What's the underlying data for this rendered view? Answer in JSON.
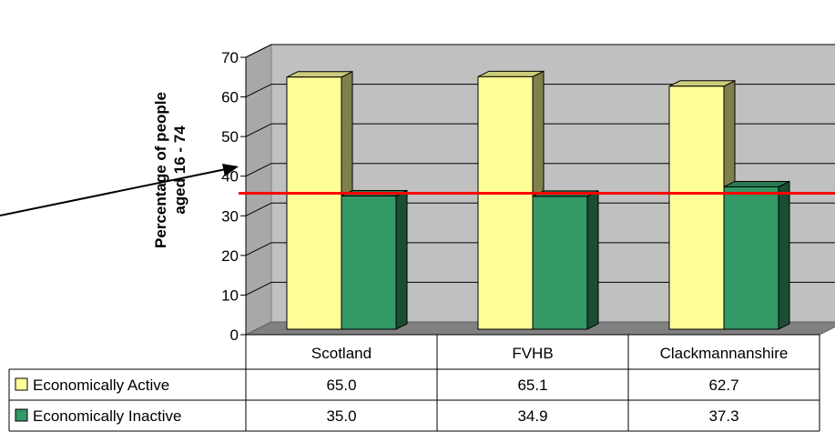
{
  "chart_data": {
    "type": "bar",
    "title": "",
    "xlabel": "",
    "ylabel": "Percentage of people aged 16 - 74",
    "ylim": [
      0,
      70
    ],
    "yticks": [
      0,
      10,
      20,
      30,
      40,
      50,
      60,
      70
    ],
    "grid": true,
    "categories": [
      "Scotland",
      "FVHB",
      "Clackmannanshire"
    ],
    "series": [
      {
        "name": "Economically Active",
        "values": [
          65.0,
          65.1,
          62.7
        ],
        "value_labels": [
          "65.0",
          "65.1",
          "62.7"
        ],
        "color": "#ffff99"
      },
      {
        "name": "Economically Inactive",
        "values": [
          35.0,
          34.9,
          37.3
        ],
        "value_labels": [
          "35.0",
          "34.9",
          "37.3"
        ],
        "color": "#339966"
      }
    ],
    "reference_line": {
      "value": 35,
      "color": "#ff0000"
    },
    "data_table": true
  }
}
